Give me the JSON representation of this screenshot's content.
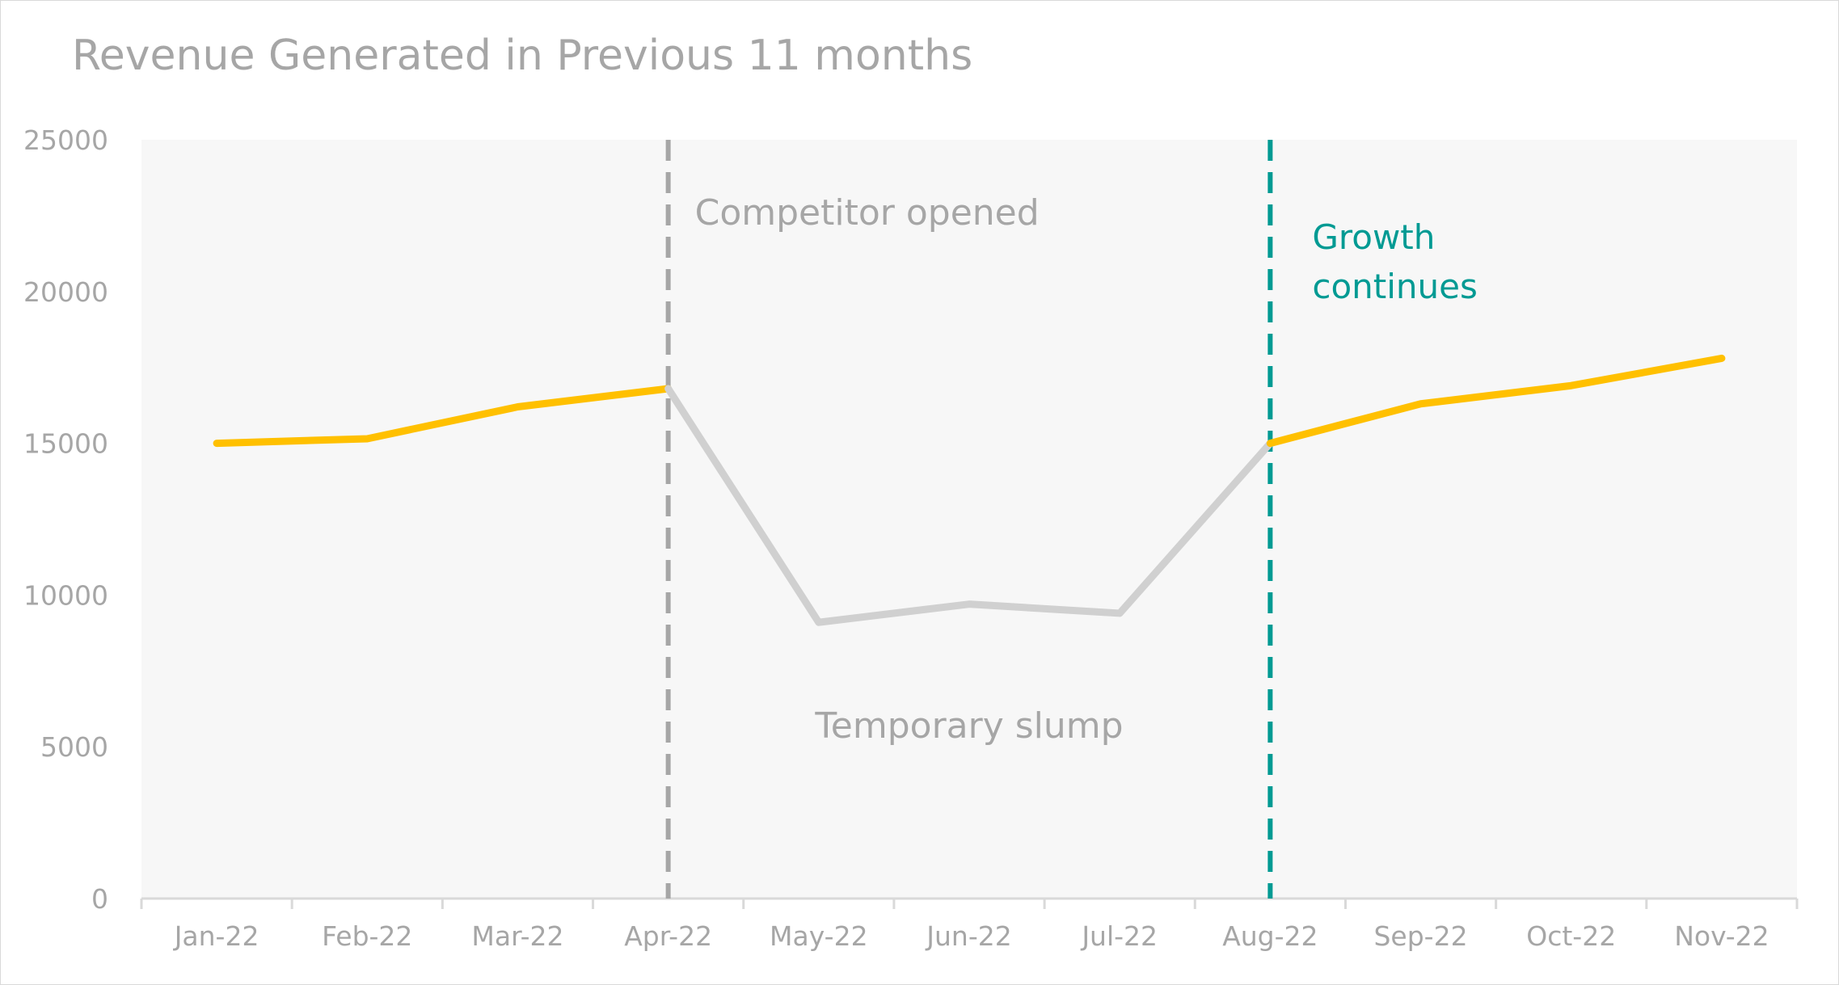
{
  "chart_data": {
    "type": "line",
    "title": "Revenue Generated in Previous 11 months",
    "categories": [
      "Jan-22",
      "Feb-22",
      "Mar-22",
      "Apr-22",
      "May-22",
      "Jun-22",
      "Jul-22",
      "Aug-22",
      "Sep-22",
      "Oct-22",
      "Nov-22"
    ],
    "values": [
      15000,
      15150,
      16200,
      16800,
      9100,
      9700,
      9400,
      15000,
      16300,
      16900,
      17800
    ],
    "ylim": [
      0,
      25000
    ],
    "yticks": [
      "0",
      "5000",
      "10000",
      "15000",
      "20000",
      "25000"
    ],
    "xlabel": "",
    "ylabel": "",
    "grid": false,
    "legend": "none",
    "colors": {
      "highlight": "#ffc000",
      "muted": "#d0d0d0",
      "competitor_line": "#a6a6a6",
      "growth_line": "#009a93",
      "plot_background": "#f7f7f7",
      "axis_text": "#a6a6a6"
    },
    "segments": [
      {
        "from": 0,
        "to": 3,
        "color": "highlight"
      },
      {
        "from": 3,
        "to": 7,
        "color": "muted"
      },
      {
        "from": 7,
        "to": 10,
        "color": "highlight"
      }
    ],
    "annotations": [
      {
        "text": "Competitor opened",
        "at_category": "Apr-22",
        "style": "dashed-vertical-line",
        "color": "competitor_line"
      },
      {
        "text": "Temporary slump",
        "at_category": "Jun-22",
        "style": "label",
        "color": "competitor_line"
      },
      {
        "lines": [
          "Growth",
          "continues"
        ],
        "at_category": "Aug-22",
        "style": "dashed-vertical-line",
        "color": "growth_line"
      }
    ]
  }
}
